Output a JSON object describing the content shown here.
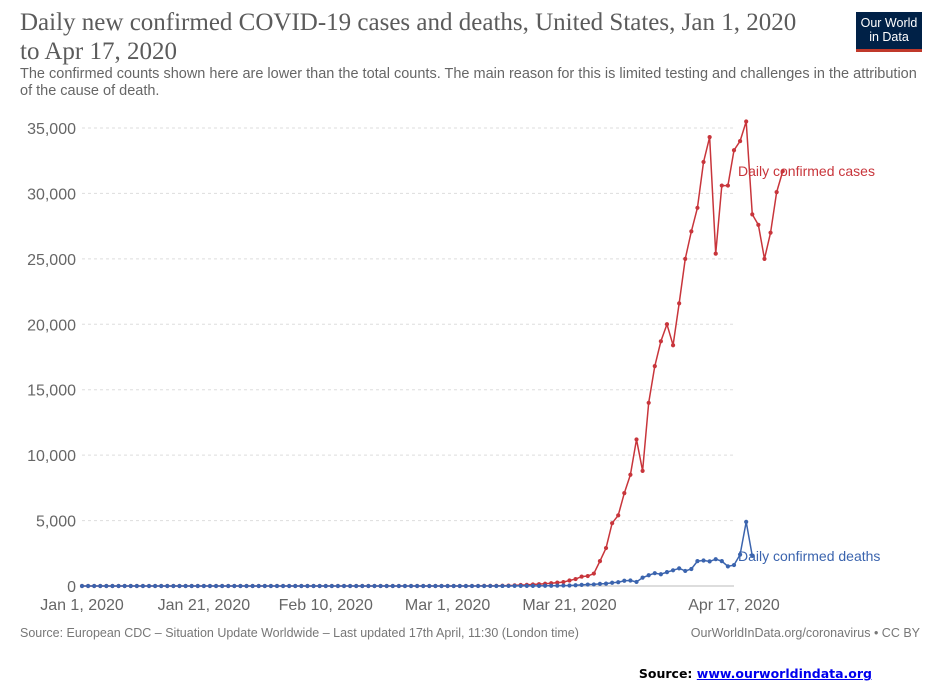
{
  "header": {
    "title": "Daily new confirmed COVID-19 cases and deaths, United States, Jan 1, 2020 to Apr 17, 2020",
    "subtitle": "The confirmed counts shown here are lower than the total counts. The main reason for this is limited testing and challenges in the attribution of the cause of death.",
    "logo_line1": "Our World",
    "logo_line2": "in Data"
  },
  "footer": {
    "left": "Source: European CDC – Situation Update Worldwide – Last updated 17th April, 11:30 (London time)",
    "right": "OurWorldInData.org/coronavirus • CC BY"
  },
  "source_note": {
    "label": "Source: ",
    "link": "www.ourworldindata.org"
  },
  "colors": {
    "cases": "#c8353b",
    "deaths": "#3b64ae",
    "axis_text": "#666666",
    "grid": "#dddddd"
  },
  "chart_data": {
    "type": "line",
    "x_start": "2020-01-01",
    "x_end": "2020-04-17",
    "x_tick_labels": [
      "Jan 1, 2020",
      "Jan 21, 2020",
      "Feb 10, 2020",
      "Mar 1, 2020",
      "Mar 21, 2020",
      "Apr 17, 2020"
    ],
    "x_tick_dates": [
      "2020-01-01",
      "2020-01-21",
      "2020-02-10",
      "2020-03-01",
      "2020-03-21",
      "2020-04-17"
    ],
    "ylim": [
      0,
      35000
    ],
    "y_ticks": [
      0,
      5000,
      10000,
      15000,
      20000,
      25000,
      30000,
      35000
    ],
    "y_tick_labels": [
      "0",
      "5,000",
      "10,000",
      "15,000",
      "20,000",
      "25,000",
      "30,000",
      "35,000"
    ],
    "grid": true,
    "series": [
      {
        "name": "Daily confirmed cases",
        "values": [
          0,
          0,
          0,
          0,
          0,
          0,
          0,
          0,
          0,
          0,
          0,
          0,
          0,
          0,
          0,
          0,
          0,
          0,
          0,
          0,
          0,
          1,
          0,
          1,
          0,
          0,
          1,
          0,
          0,
          0,
          1,
          1,
          3,
          0,
          0,
          0,
          0,
          0,
          0,
          0,
          1,
          0,
          0,
          0,
          0,
          0,
          0,
          0,
          1,
          1,
          0,
          0,
          0,
          0,
          0,
          0,
          0,
          0,
          0,
          0,
          0,
          0,
          0,
          0,
          3,
          5,
          9,
          10,
          14,
          22,
          31,
          45,
          80,
          90,
          120,
          140,
          170,
          210,
          260,
          300,
          420,
          530,
          720,
          760,
          950,
          1900,
          2900,
          4800,
          5400,
          7100,
          8500,
          11200,
          8800,
          14000,
          16800,
          18700,
          20000,
          18400,
          21600,
          25000,
          27100,
          28900,
          32400,
          34300,
          25400,
          30600,
          30600,
          33300,
          34000,
          35500,
          28400,
          27600,
          25000,
          27000,
          30100,
          31700
        ]
      },
      {
        "name": "Daily confirmed deaths",
        "values": [
          0,
          0,
          0,
          0,
          0,
          0,
          0,
          0,
          0,
          0,
          0,
          0,
          0,
          0,
          0,
          0,
          0,
          0,
          0,
          0,
          0,
          0,
          0,
          0,
          0,
          0,
          0,
          0,
          0,
          0,
          0,
          0,
          0,
          0,
          0,
          0,
          0,
          0,
          0,
          0,
          0,
          0,
          0,
          0,
          0,
          0,
          0,
          0,
          0,
          0,
          0,
          0,
          0,
          0,
          0,
          0,
          0,
          0,
          0,
          0,
          1,
          0,
          1,
          0,
          1,
          2,
          1,
          4,
          0,
          3,
          4,
          8,
          8,
          12,
          11,
          12,
          18,
          20,
          25,
          33,
          40,
          57,
          87,
          110,
          120,
          160,
          180,
          250,
          290,
          400,
          420,
          310,
          640,
          820,
          980,
          900,
          1060,
          1200,
          1350,
          1150,
          1300,
          1900,
          1950,
          1880,
          2050,
          1900,
          1500,
          1600,
          2400,
          4900,
          2300
        ]
      }
    ],
    "annotations": [
      "Daily confirmed cases",
      "Daily confirmed deaths"
    ]
  }
}
